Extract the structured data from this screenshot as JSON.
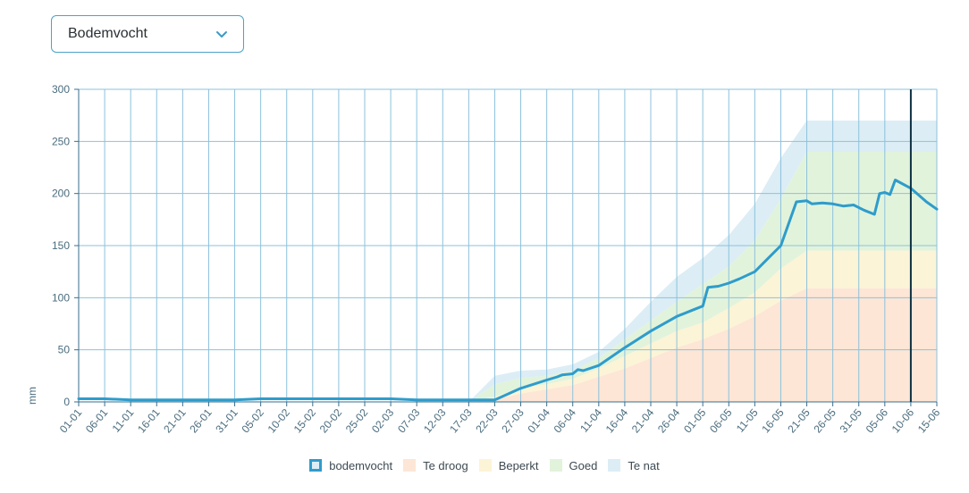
{
  "dropdown": {
    "selected": "Bodemvocht"
  },
  "colors": {
    "line": "#2e9ccb",
    "grid": "#8cc2dc",
    "axis": "#3a6e8c",
    "marker": "#0d3142",
    "te_droog": "#fde6d6",
    "beperkt": "#fcf4d6",
    "goed": "#e2f3dc",
    "te_nat": "#dcedf5"
  },
  "chart_data": {
    "type": "area",
    "ylabel": "mm",
    "xlabel": "",
    "ylim": [
      0,
      300
    ],
    "yticks": [
      0,
      50,
      100,
      150,
      200,
      250,
      300
    ],
    "grid": true,
    "legend_position": "bottom",
    "x_ticks": [
      "01-01",
      "06-01",
      "11-01",
      "16-01",
      "21-01",
      "26-01",
      "31-01",
      "05-02",
      "10-02",
      "15-02",
      "20-02",
      "25-02",
      "02-03",
      "07-03",
      "12-03",
      "17-03",
      "22-03",
      "27-03",
      "01-04",
      "06-04",
      "11-04",
      "16-04",
      "21-04",
      "26-04",
      "01-05",
      "06-05",
      "11-05",
      "16-05",
      "21-05",
      "26-05",
      "31-05",
      "05-06",
      "10-06",
      "15-06"
    ],
    "current_date": "10-06",
    "legend": [
      {
        "key": "bodemvocht",
        "label": "bodemvocht"
      },
      {
        "key": "te_droog",
        "label": "Te droog"
      },
      {
        "key": "beperkt",
        "label": "Beperkt"
      },
      {
        "key": "goed",
        "label": "Goed"
      },
      {
        "key": "te_nat",
        "label": "Te nat"
      }
    ],
    "bands": {
      "dates": [
        "01-01",
        "17-03",
        "22-03",
        "27-03",
        "01-04",
        "06-04",
        "11-04",
        "16-04",
        "21-04",
        "26-04",
        "01-05",
        "06-05",
        "11-05",
        "16-05",
        "21-05",
        "26-05",
        "31-05",
        "05-06",
        "10-06",
        "15-06"
      ],
      "te_droog_upper": [
        0,
        0,
        2,
        8,
        12,
        16,
        24,
        32,
        42,
        52,
        60,
        70,
        82,
        97,
        109,
        109,
        109,
        109,
        109,
        109
      ],
      "beperkt_upper": [
        0,
        0,
        5,
        13,
        17,
        22,
        32,
        44,
        56,
        68,
        76,
        90,
        105,
        128,
        145,
        145,
        145,
        145,
        145,
        145
      ],
      "goed_upper": [
        0,
        0,
        17,
        23,
        25,
        30,
        42,
        60,
        78,
        96,
        113,
        130,
        155,
        195,
        240,
        240,
        240,
        240,
        240,
        240
      ],
      "te_nat_upper": [
        0,
        0,
        25,
        30,
        31,
        36,
        48,
        70,
        96,
        120,
        138,
        160,
        190,
        234,
        270,
        270,
        270,
        270,
        270,
        270
      ]
    },
    "series": [
      {
        "name": "bodemvocht",
        "dates": [
          "01-01",
          "06-01",
          "11-01",
          "16-01",
          "21-01",
          "26-01",
          "31-01",
          "05-02",
          "10-02",
          "15-02",
          "20-02",
          "25-02",
          "02-03",
          "07-03",
          "12-03",
          "17-03",
          "22-03",
          "27-03",
          "01-04",
          "03-04",
          "04-04",
          "06-04",
          "07-04",
          "08-04",
          "11-04",
          "16-04",
          "21-04",
          "26-04",
          "29-04",
          "01-05",
          "02-05",
          "04-05",
          "06-05",
          "08-05",
          "11-05",
          "14-05",
          "16-05",
          "19-05",
          "21-05",
          "22-05",
          "24-05",
          "26-05",
          "28-05",
          "30-05",
          "01-06",
          "03-06",
          "04-06",
          "05-06",
          "06-06",
          "07-06",
          "10-06",
          "13-06",
          "15-06"
        ],
        "values": [
          3,
          3,
          2,
          2,
          2,
          2,
          2,
          3,
          3,
          3,
          3,
          3,
          3,
          2,
          2,
          2,
          2,
          13,
          21,
          24,
          26,
          27,
          31,
          30,
          35,
          52,
          68,
          82,
          88,
          92,
          110,
          111,
          114,
          118,
          125,
          140,
          150,
          192,
          193,
          190,
          191,
          190,
          188,
          189,
          184,
          180,
          200,
          201,
          199,
          213,
          205,
          192,
          185
        ]
      }
    ]
  }
}
